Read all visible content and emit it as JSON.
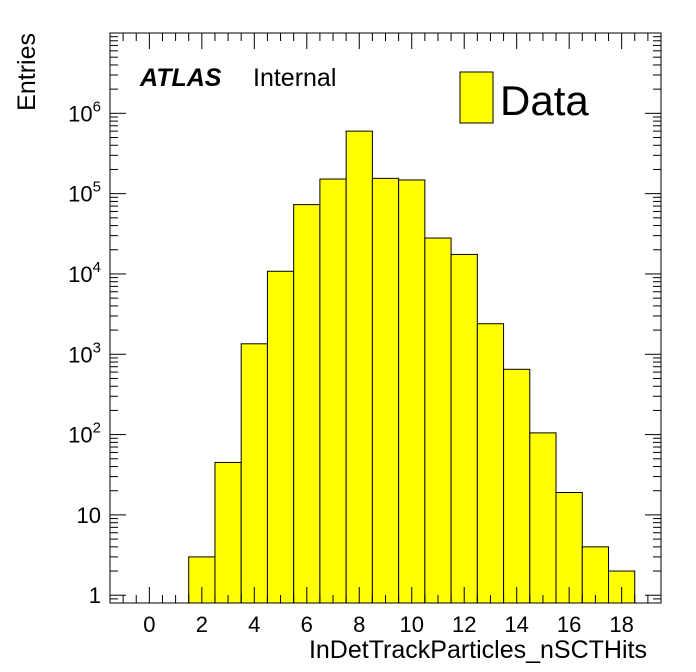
{
  "labels": {
    "atlas": "ATLAS",
    "internal": "Internal"
  },
  "chart_data": {
    "type": "bar",
    "histogram": true,
    "xlabel": "InDetTrackParticles_nSCTHits",
    "ylabel": "Entries",
    "y_scale": "log",
    "xlim": [
      -1.5,
      19.5
    ],
    "ylim": [
      0.8,
      10000000
    ],
    "x_ticks": [
      0,
      2,
      4,
      6,
      8,
      10,
      12,
      14,
      16,
      18
    ],
    "y_ticks": [
      {
        "value": 1,
        "base": "1",
        "exp": ""
      },
      {
        "value": 10,
        "base": "10",
        "exp": ""
      },
      {
        "value": 100,
        "base": "10",
        "exp": "2"
      },
      {
        "value": 1000,
        "base": "10",
        "exp": "3"
      },
      {
        "value": 10000,
        "base": "10",
        "exp": "4"
      },
      {
        "value": 100000,
        "base": "10",
        "exp": "5"
      },
      {
        "value": 1000000,
        "base": "10",
        "exp": "6"
      }
    ],
    "bin_width": 1,
    "bin_centers": [
      2,
      3,
      4,
      5,
      6,
      7,
      8,
      9,
      10,
      11,
      12,
      13,
      14,
      15,
      16,
      17,
      18
    ],
    "values": [
      3,
      45,
      1350,
      10800,
      73000,
      152000,
      600000,
      155000,
      148000,
      28000,
      17500,
      2400,
      650,
      105,
      19,
      4,
      2
    ],
    "series": [
      {
        "name": "Data",
        "color": "#ffff00",
        "edge_color": "#000000"
      }
    ],
    "legend_position": "top-right",
    "grid": false
  }
}
